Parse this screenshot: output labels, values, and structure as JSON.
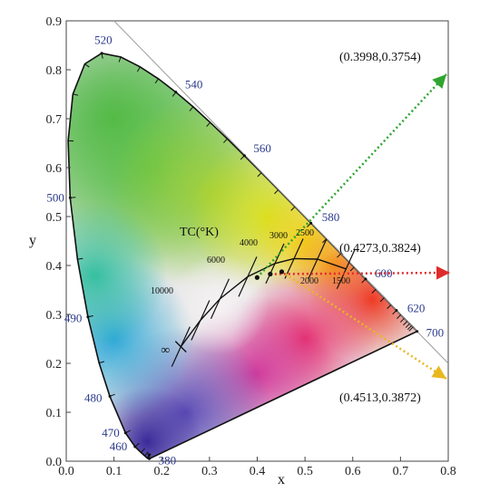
{
  "chart_data": {
    "type": "scatter",
    "title": "",
    "xlabel": "x",
    "ylabel": "y",
    "xlim": [
      0.0,
      0.8
    ],
    "ylim": [
      0.0,
      0.9
    ],
    "x_ticks": [
      "0.0",
      "0.1",
      "0.2",
      "0.3",
      "0.4",
      "0.5",
      "0.6",
      "0.7",
      "0.8"
    ],
    "y_ticks": [
      "0.0",
      "0.1",
      "0.2",
      "0.3",
      "0.4",
      "0.5",
      "0.6",
      "0.7",
      "0.8",
      "0.9"
    ],
    "grid": false,
    "spectral_locus": [
      {
        "label": "380",
        "x": 0.1741,
        "y": 0.005
      },
      {
        "label": "460",
        "x": 0.144,
        "y": 0.0297
      },
      {
        "label": "470",
        "x": 0.1241,
        "y": 0.0578
      },
      {
        "label": "480",
        "x": 0.0913,
        "y": 0.1327
      },
      {
        "label": "490",
        "x": 0.0454,
        "y": 0.295
      },
      {
        "label": "500",
        "x": 0.0082,
        "y": 0.5384
      },
      {
        "label": "520",
        "x": 0.0743,
        "y": 0.8338
      },
      {
        "label": "540",
        "x": 0.2296,
        "y": 0.7543
      },
      {
        "label": "560",
        "x": 0.3731,
        "y": 0.6245
      },
      {
        "label": "580",
        "x": 0.5125,
        "y": 0.4866
      },
      {
        "label": "600",
        "x": 0.627,
        "y": 0.3725
      },
      {
        "label": "620",
        "x": 0.6915,
        "y": 0.3083
      },
      {
        "label": "700",
        "x": 0.7347,
        "y": 0.2653
      }
    ],
    "planckian_locus": {
      "label": "TC(°K)",
      "points": [
        {
          "cct": "∞",
          "x": 0.24,
          "y": 0.234
        },
        {
          "cct": "10000",
          "x": 0.281,
          "y": 0.288
        },
        {
          "cct": "6000",
          "x": 0.322,
          "y": 0.332
        },
        {
          "cct": "4000",
          "x": 0.38,
          "y": 0.377
        },
        {
          "cct": "3000",
          "x": 0.437,
          "y": 0.404
        },
        {
          "cct": "2500",
          "x": 0.477,
          "y": 0.414
        },
        {
          "cct": "2000",
          "x": 0.526,
          "y": 0.413
        },
        {
          "cct": "1500",
          "x": 0.586,
          "y": 0.393
        }
      ],
      "tick_labels_upper": [
        "6000",
        "4000",
        "3000",
        "2500"
      ],
      "tick_labels_lower": [
        "2000",
        "1500"
      ],
      "tick_label_left": "10000",
      "infinity_label": "∞"
    },
    "marked_points": [
      {
        "label": "(0.3998,0.3754)",
        "x": 0.3998,
        "y": 0.3754,
        "arrow_color": "#2fa52f",
        "direction": "upper-right"
      },
      {
        "label": "(0.4273,0.3824)",
        "x": 0.4273,
        "y": 0.3824,
        "arrow_color": "#e02b2b",
        "direction": "right"
      },
      {
        "label": "(0.4513,0.3872)",
        "x": 0.4513,
        "y": 0.3872,
        "arrow_color": "#e8b81e",
        "direction": "lower-right"
      }
    ]
  }
}
